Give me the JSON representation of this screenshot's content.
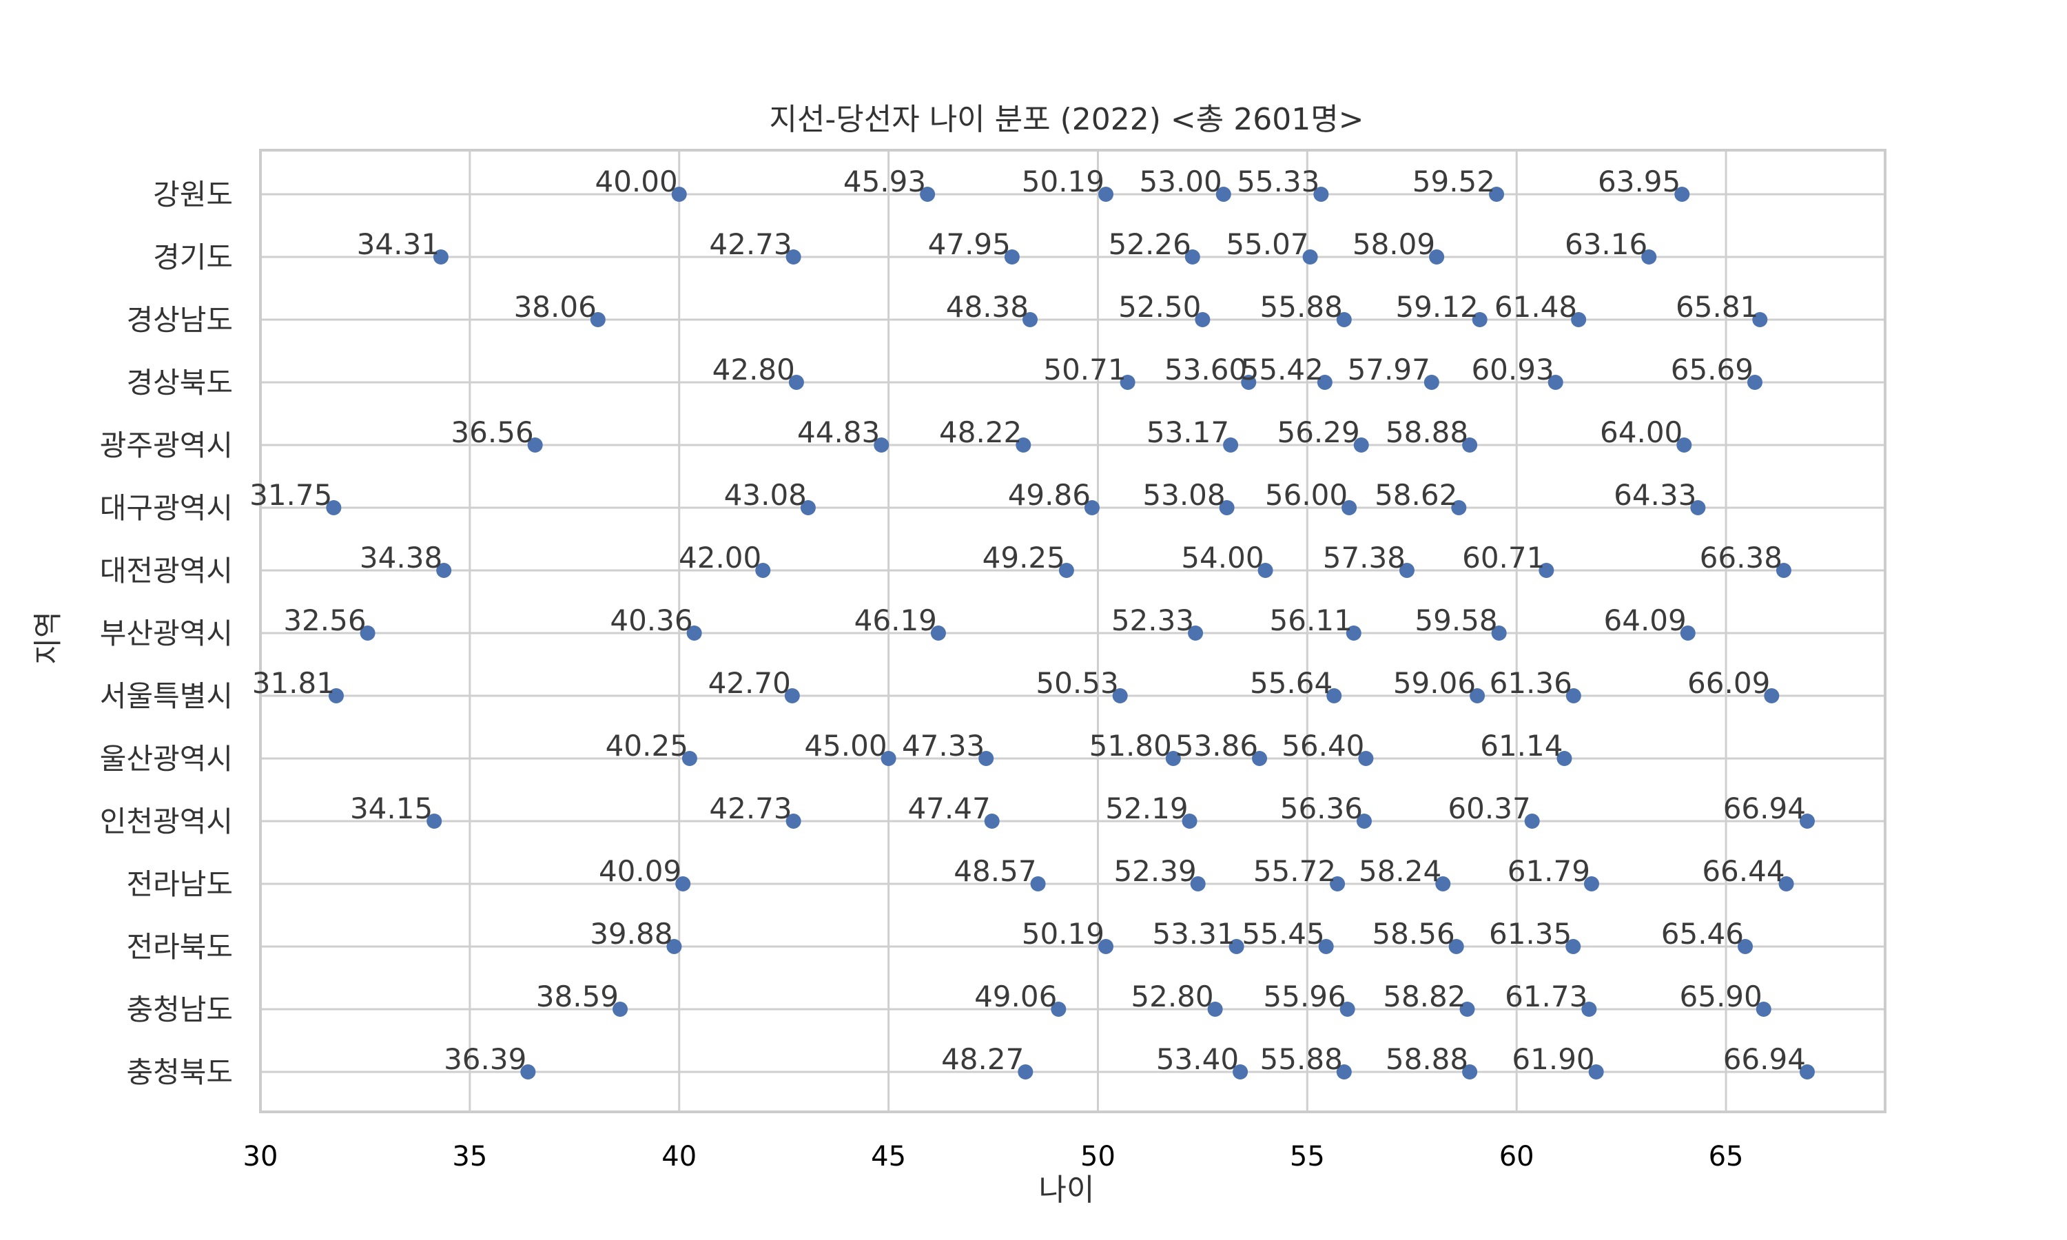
{
  "chart_data": {
    "type": "scatter",
    "title": "지선-당선자 나이 분포 (2022)  <총 2601명>",
    "xlabel": "나이",
    "ylabel": "지역",
    "xlim": [
      30,
      68.8
    ],
    "xticks": [
      "30",
      "35",
      "40",
      "45",
      "50",
      "55",
      "60",
      "65"
    ],
    "grid": true,
    "marker_color": "#4c72b0",
    "categories": [
      "강원도",
      "경기도",
      "경상남도",
      "경상북도",
      "광주광역시",
      "대구광역시",
      "대전광역시",
      "부산광역시",
      "서울특별시",
      "울산광역시",
      "인천광역시",
      "전라남도",
      "전라북도",
      "충청남도",
      "충청북도"
    ],
    "series": [
      {
        "values": [
          40.0,
          45.93,
          50.19,
          53.0,
          55.33,
          59.52,
          63.95
        ],
        "labels": [
          "40.00",
          "45.93",
          "50.19",
          "53.00",
          "55.33",
          "59.52",
          "63.95"
        ]
      },
      {
        "values": [
          34.31,
          42.73,
          47.95,
          52.26,
          55.07,
          58.09,
          63.16
        ],
        "labels": [
          "34.31",
          "42.73",
          "47.95",
          "52.26",
          "55.07",
          "58.09",
          "63.16"
        ]
      },
      {
        "values": [
          38.06,
          48.38,
          52.5,
          55.88,
          59.12,
          61.48,
          65.81
        ],
        "labels": [
          "38.06",
          "48.38",
          "52.50",
          "55.88",
          "59.12",
          "61.48",
          "65.81"
        ]
      },
      {
        "values": [
          42.8,
          50.71,
          53.6,
          55.42,
          57.97,
          60.93,
          65.69
        ],
        "labels": [
          "42.80",
          "50.71",
          "53.60",
          "55.42",
          "57.97",
          "60.93",
          "65.69"
        ]
      },
      {
        "values": [
          36.56,
          44.83,
          48.22,
          53.17,
          56.29,
          58.88,
          64.0
        ],
        "labels": [
          "36.56",
          "44.83",
          "48.22",
          "53.17",
          "56.29",
          "58.88",
          "64.00"
        ]
      },
      {
        "values": [
          31.75,
          43.08,
          49.86,
          53.08,
          56.0,
          58.62,
          64.33
        ],
        "labels": [
          "31.75",
          "43.08",
          "49.86",
          "53.08",
          "56.00",
          "58.62",
          "64.33"
        ]
      },
      {
        "values": [
          34.38,
          42.0,
          49.25,
          54.0,
          57.38,
          60.71,
          66.38
        ],
        "labels": [
          "34.38",
          "42.00",
          "49.25",
          "54.00",
          "57.38",
          "60.71",
          "66.38"
        ]
      },
      {
        "values": [
          32.56,
          40.36,
          46.19,
          52.33,
          56.11,
          59.58,
          64.09
        ],
        "labels": [
          "32.56",
          "40.36",
          "46.19",
          "52.33",
          "56.11",
          "59.58",
          "64.09"
        ]
      },
      {
        "values": [
          31.81,
          42.7,
          50.53,
          55.64,
          59.06,
          61.36,
          66.09
        ],
        "labels": [
          "31.81",
          "42.70",
          "50.53",
          "55.64",
          "59.06",
          "61.36",
          "66.09"
        ]
      },
      {
        "values": [
          40.25,
          45.0,
          47.33,
          51.8,
          53.86,
          56.4,
          61.14
        ],
        "labels": [
          "40.25",
          "45.00",
          "47.33",
          "51.80",
          "53.86",
          "56.40",
          "61.14"
        ]
      },
      {
        "values": [
          34.15,
          42.73,
          47.47,
          52.19,
          56.36,
          60.37,
          66.94
        ],
        "labels": [
          "34.15",
          "42.73",
          "47.47",
          "52.19",
          "56.36",
          "60.37",
          "66.94"
        ]
      },
      {
        "values": [
          40.09,
          48.57,
          52.39,
          55.72,
          58.24,
          61.79,
          66.44
        ],
        "labels": [
          "40.09",
          "48.57",
          "52.39",
          "55.72",
          "58.24",
          "61.79",
          "66.44"
        ]
      },
      {
        "values": [
          39.88,
          50.19,
          53.31,
          55.45,
          58.56,
          61.35,
          65.46
        ],
        "labels": [
          "39.88",
          "50.19",
          "53.31",
          "55.45",
          "58.56",
          "61.35",
          "65.46"
        ]
      },
      {
        "values": [
          38.59,
          49.06,
          52.8,
          55.96,
          58.82,
          61.73,
          65.9
        ],
        "labels": [
          "38.59",
          "49.06",
          "52.80",
          "55.96",
          "58.82",
          "61.73",
          "65.90"
        ]
      },
      {
        "values": [
          36.39,
          48.27,
          53.4,
          55.88,
          58.88,
          61.9,
          66.94
        ],
        "labels": [
          "36.39",
          "48.27",
          "53.40",
          "55.88",
          "58.88",
          "61.90",
          "66.94"
        ]
      }
    ]
  }
}
